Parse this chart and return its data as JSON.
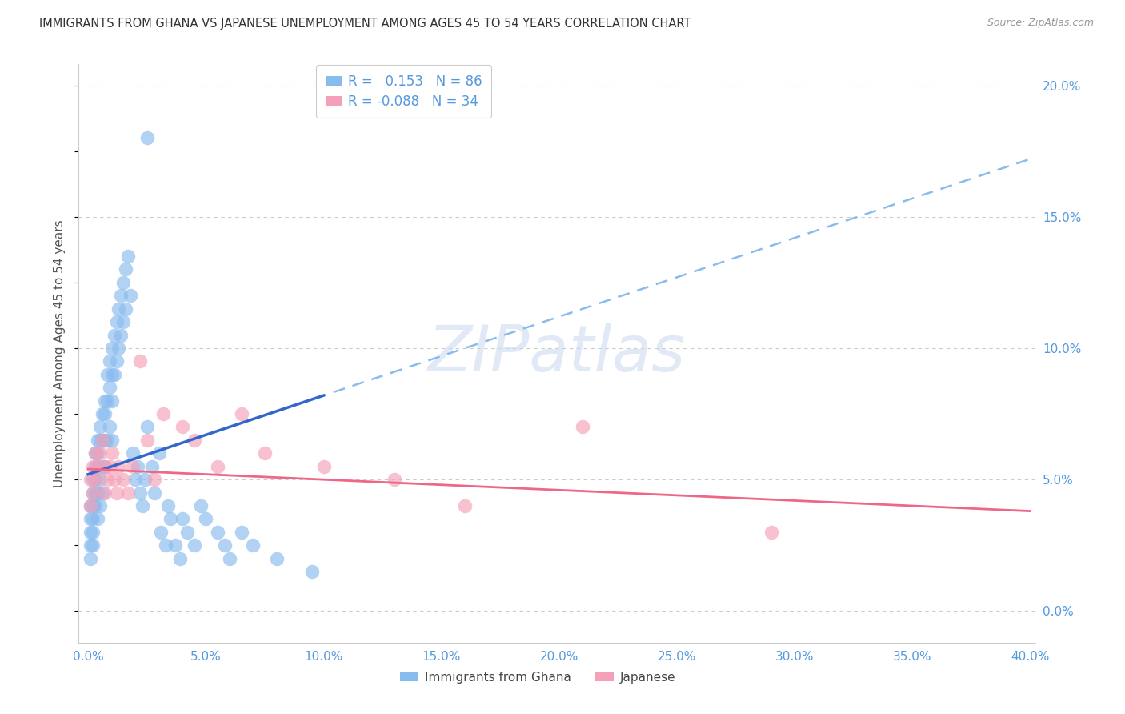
{
  "title": "IMMIGRANTS FROM GHANA VS JAPANESE UNEMPLOYMENT AMONG AGES 45 TO 54 YEARS CORRELATION CHART",
  "source": "Source: ZipAtlas.com",
  "ylabel": "Unemployment Among Ages 45 to 54 years",
  "legend_label_ghana": "Immigrants from Ghana",
  "legend_label_japanese": "Japanese",
  "legend_r_ghana": "0.153",
  "legend_n_ghana": "86",
  "legend_r_japanese": "-0.088",
  "legend_n_japanese": "34",
  "xlim_min": -0.004,
  "xlim_max": 0.402,
  "ylim_min": -0.012,
  "ylim_max": 0.208,
  "yticks": [
    0.0,
    0.05,
    0.1,
    0.15,
    0.2
  ],
  "xticks": [
    0.0,
    0.05,
    0.1,
    0.15,
    0.2,
    0.25,
    0.3,
    0.35,
    0.4
  ],
  "color_ghana": "#88BBEE",
  "color_japanese": "#F4A0B8",
  "color_trendline_ghana_solid": "#3366CC",
  "color_trendline_ghana_dashed": "#88BBEE",
  "color_trendline_japanese": "#EE6688",
  "color_axis_labels": "#5599DD",
  "color_grid": "#CCCCCC",
  "watermark_text": "ZIPatlas",
  "watermark_color": "#C8D8EE",
  "ghana_x": [
    0.001,
    0.001,
    0.001,
    0.001,
    0.001,
    0.002,
    0.002,
    0.002,
    0.002,
    0.002,
    0.002,
    0.003,
    0.003,
    0.003,
    0.003,
    0.003,
    0.004,
    0.004,
    0.004,
    0.004,
    0.004,
    0.005,
    0.005,
    0.005,
    0.005,
    0.006,
    0.006,
    0.006,
    0.006,
    0.007,
    0.007,
    0.007,
    0.007,
    0.008,
    0.008,
    0.008,
    0.009,
    0.009,
    0.009,
    0.01,
    0.01,
    0.01,
    0.01,
    0.011,
    0.011,
    0.012,
    0.012,
    0.013,
    0.013,
    0.014,
    0.014,
    0.015,
    0.015,
    0.016,
    0.016,
    0.017,
    0.018,
    0.019,
    0.02,
    0.021,
    0.022,
    0.023,
    0.024,
    0.025,
    0.025,
    0.027,
    0.028,
    0.03,
    0.031,
    0.033,
    0.034,
    0.035,
    0.037,
    0.039,
    0.04,
    0.042,
    0.045,
    0.048,
    0.05,
    0.055,
    0.058,
    0.06,
    0.065,
    0.07,
    0.08,
    0.095
  ],
  "ghana_y": [
    0.035,
    0.03,
    0.04,
    0.025,
    0.02,
    0.045,
    0.04,
    0.035,
    0.03,
    0.025,
    0.05,
    0.06,
    0.055,
    0.05,
    0.045,
    0.04,
    0.065,
    0.06,
    0.055,
    0.045,
    0.035,
    0.07,
    0.065,
    0.05,
    0.04,
    0.075,
    0.065,
    0.055,
    0.045,
    0.08,
    0.075,
    0.065,
    0.055,
    0.09,
    0.08,
    0.065,
    0.095,
    0.085,
    0.07,
    0.1,
    0.09,
    0.08,
    0.065,
    0.105,
    0.09,
    0.11,
    0.095,
    0.115,
    0.1,
    0.12,
    0.105,
    0.125,
    0.11,
    0.13,
    0.115,
    0.135,
    0.12,
    0.06,
    0.05,
    0.055,
    0.045,
    0.04,
    0.05,
    0.07,
    0.18,
    0.055,
    0.045,
    0.06,
    0.03,
    0.025,
    0.04,
    0.035,
    0.025,
    0.02,
    0.035,
    0.03,
    0.025,
    0.04,
    0.035,
    0.03,
    0.025,
    0.02,
    0.03,
    0.025,
    0.02,
    0.015
  ],
  "japanese_x": [
    0.001,
    0.001,
    0.002,
    0.002,
    0.003,
    0.003,
    0.004,
    0.005,
    0.006,
    0.007,
    0.007,
    0.008,
    0.009,
    0.01,
    0.011,
    0.012,
    0.013,
    0.015,
    0.017,
    0.019,
    0.022,
    0.025,
    0.028,
    0.032,
    0.04,
    0.045,
    0.055,
    0.065,
    0.075,
    0.1,
    0.13,
    0.16,
    0.21,
    0.29
  ],
  "japanese_y": [
    0.05,
    0.04,
    0.055,
    0.045,
    0.06,
    0.05,
    0.055,
    0.06,
    0.065,
    0.055,
    0.045,
    0.05,
    0.055,
    0.06,
    0.05,
    0.045,
    0.055,
    0.05,
    0.045,
    0.055,
    0.095,
    0.065,
    0.05,
    0.075,
    0.07,
    0.065,
    0.055,
    0.075,
    0.06,
    0.055,
    0.05,
    0.04,
    0.07,
    0.03
  ],
  "ghana_trendline_intercept": 0.052,
  "ghana_trendline_slope": 0.3,
  "japanese_trendline_intercept": 0.054,
  "japanese_trendline_slope": -0.04,
  "figwidth": 14.06,
  "figheight": 8.92,
  "dpi": 100
}
